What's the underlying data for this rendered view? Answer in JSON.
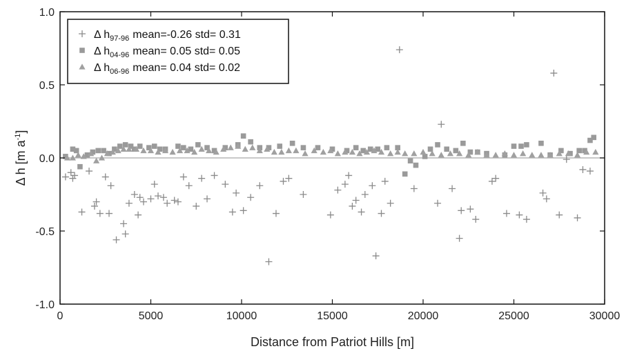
{
  "chart_data": {
    "type": "scatter",
    "title": "",
    "xlabel": "Distance from Patriot Hills [m]",
    "ylabel": {
      "main": "Δ h [m a",
      "sup": "-1",
      "close": "]"
    },
    "xlim": [
      0,
      30000
    ],
    "ylim": [
      -1.0,
      1.0
    ],
    "xticks": [
      0,
      5000,
      10000,
      15000,
      20000,
      25000,
      30000
    ],
    "xtick_labels": [
      "0",
      "5000",
      "10000",
      "15000",
      "20000",
      "25000",
      "30000"
    ],
    "yticks": [
      1.0,
      0.5,
      0.0,
      -0.5,
      -1.0
    ],
    "ytick_labels": [
      "1.0",
      "0.5",
      "0.0",
      "-0.5",
      "-1.0"
    ],
    "grid": false,
    "zero_line": true,
    "legend_position": "top-left",
    "colors": {
      "plus": "#8a8a8a",
      "square": "#9a9a9a",
      "triangle": "#a0a0a0",
      "zero_line": "#b5b5b5"
    },
    "series": [
      {
        "name": {
          "pre": "Δ h",
          "sub": "97-96",
          "post": "mean=-0.26 std= 0.31"
        },
        "marker": "plus",
        "x": [
          300,
          600,
          700,
          800,
          1200,
          1600,
          1900,
          2000,
          2200,
          2500,
          2700,
          2800,
          3100,
          3500,
          3600,
          3800,
          4100,
          4300,
          4400,
          4600,
          5000,
          5200,
          5400,
          5700,
          5900,
          6300,
          6500,
          6800,
          7100,
          7500,
          7800,
          8100,
          8500,
          9100,
          9500,
          9700,
          10100,
          10500,
          11000,
          11500,
          11900,
          12300,
          12600,
          13400,
          14900,
          15300,
          15700,
          15900,
          16100,
          16300,
          16600,
          16800,
          17200,
          17400,
          17700,
          17900,
          18200,
          18700,
          19500,
          20800,
          21000,
          21600,
          22000,
          22100,
          22600,
          22900,
          23800,
          24000,
          24600,
          25300,
          25700,
          26600,
          26800,
          27200,
          27500,
          27900,
          28500,
          28800,
          29200
        ],
        "y": [
          -0.13,
          -0.1,
          -0.14,
          -0.12,
          -0.37,
          -0.09,
          -0.33,
          -0.3,
          -0.38,
          -0.13,
          -0.38,
          -0.19,
          -0.56,
          -0.45,
          -0.52,
          -0.31,
          -0.25,
          -0.39,
          -0.27,
          -0.3,
          -0.28,
          -0.18,
          -0.26,
          -0.27,
          -0.31,
          -0.29,
          -0.3,
          -0.13,
          -0.19,
          -0.33,
          -0.14,
          -0.28,
          -0.12,
          -0.18,
          -0.37,
          -0.24,
          -0.36,
          -0.27,
          -0.19,
          -0.71,
          -0.38,
          -0.16,
          -0.14,
          -0.25,
          -0.39,
          -0.22,
          -0.18,
          -0.12,
          -0.33,
          -0.29,
          -0.37,
          -0.25,
          -0.19,
          -0.67,
          -0.38,
          -0.16,
          -0.31,
          0.74,
          -0.21,
          -0.31,
          0.23,
          -0.21,
          -0.55,
          -0.36,
          -0.35,
          -0.42,
          -0.16,
          -0.14,
          -0.38,
          -0.39,
          -0.42,
          -0.24,
          -0.28,
          0.58,
          -0.39,
          -0.01,
          -0.41,
          -0.08,
          -0.09
        ]
      },
      {
        "name": {
          "pre": "Δ h",
          "sub": "04-96",
          "post": "mean= 0.05 std= 0.05"
        },
        "marker": "square",
        "x": [
          300,
          700,
          900,
          1100,
          1500,
          1800,
          2100,
          2400,
          2700,
          3000,
          3300,
          3600,
          3900,
          4100,
          4400,
          4900,
          5200,
          5500,
          5800,
          6500,
          6800,
          7200,
          7600,
          8100,
          8500,
          9100,
          9800,
          10100,
          10500,
          11000,
          11500,
          12100,
          12800,
          13400,
          14200,
          15000,
          15800,
          16300,
          16700,
          17100,
          17500,
          18000,
          18600,
          19000,
          19300,
          19600,
          20100,
          20400,
          20800,
          21300,
          21800,
          22200,
          22600,
          23000,
          23500,
          24500,
          25000,
          25400,
          25700,
          26500,
          27000,
          27600,
          28100,
          28600,
          28900,
          29200,
          29400
        ],
        "y": [
          0.01,
          0.06,
          0.05,
          -0.06,
          0.02,
          0.04,
          0.05,
          0.05,
          0.03,
          0.06,
          0.08,
          0.09,
          0.08,
          0.06,
          0.08,
          0.07,
          0.08,
          0.06,
          0.06,
          0.08,
          0.07,
          0.06,
          0.09,
          0.07,
          0.05,
          0.07,
          0.09,
          0.15,
          0.11,
          0.07,
          0.07,
          0.08,
          0.1,
          0.07,
          0.07,
          0.06,
          0.05,
          0.07,
          0.05,
          0.06,
          0.06,
          0.07,
          0.07,
          -0.11,
          -0.02,
          -0.05,
          0.01,
          0.06,
          0.09,
          0.06,
          0.05,
          0.1,
          0.04,
          0.04,
          0.03,
          0.02,
          0.08,
          0.08,
          0.09,
          0.1,
          0.02,
          0.05,
          0.03,
          0.05,
          0.05,
          0.12,
          0.14
        ]
      },
      {
        "name": {
          "pre": "Δ h",
          "sub": "06-96",
          "post": "mean= 0.04 std= 0.02"
        },
        "marker": "triangle",
        "x": [
          400,
          700,
          1000,
          1300,
          1700,
          2000,
          2300,
          2600,
          2900,
          3200,
          3500,
          3800,
          4200,
          4600,
          5000,
          5400,
          5800,
          6200,
          6600,
          7000,
          7400,
          7800,
          8200,
          8600,
          9000,
          9400,
          9800,
          10200,
          10600,
          11000,
          11400,
          11800,
          12200,
          12600,
          13000,
          13500,
          14000,
          14500,
          14900,
          15300,
          15700,
          16100,
          16500,
          16900,
          17300,
          17700,
          18200,
          18600,
          19000,
          19500,
          20000,
          20500,
          21000,
          21500,
          22000,
          22500,
          23000,
          23500,
          24000,
          24500,
          25000,
          25500,
          26000,
          26500,
          27000,
          27500,
          28000,
          28500,
          29000,
          29500
        ],
        "y": [
          0.0,
          0.0,
          0.02,
          0.01,
          0.03,
          -0.02,
          0.0,
          0.03,
          0.04,
          0.05,
          0.06,
          0.06,
          0.06,
          0.05,
          0.05,
          0.04,
          0.05,
          0.04,
          0.05,
          0.05,
          0.04,
          0.06,
          0.05,
          0.04,
          0.06,
          0.07,
          0.08,
          0.06,
          0.07,
          0.05,
          0.06,
          0.04,
          0.04,
          0.05,
          0.05,
          0.03,
          0.05,
          0.04,
          0.05,
          0.03,
          0.04,
          0.04,
          0.03,
          0.04,
          0.05,
          0.04,
          0.03,
          0.04,
          0.03,
          0.03,
          0.04,
          0.03,
          0.02,
          0.03,
          0.03,
          0.02,
          0.04,
          0.02,
          0.02,
          0.03,
          0.02,
          0.03,
          0.02,
          0.02,
          0.02,
          0.03,
          0.03,
          0.02,
          0.04,
          0.04
        ]
      }
    ]
  }
}
